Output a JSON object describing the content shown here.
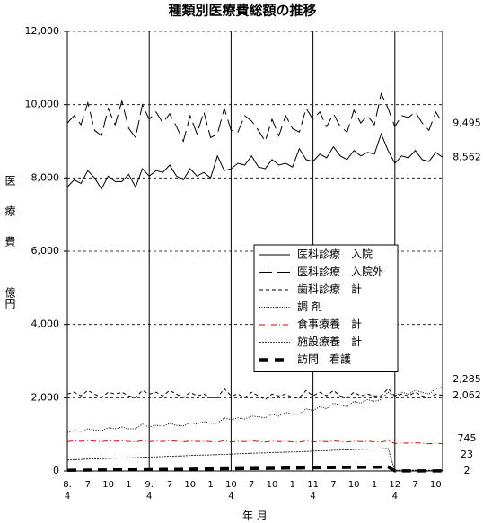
{
  "chart_data": {
    "type": "line",
    "title": "種類別医療費総額の推移",
    "y_label": "医療費",
    "y_unit": "億円",
    "x_label": "年 月",
    "categories": [
      "8.\n4",
      null,
      null,
      "7",
      null,
      null,
      "10",
      null,
      null,
      "1",
      null,
      null,
      "9.\n4",
      null,
      null,
      "7",
      null,
      null,
      "10",
      null,
      null,
      "1",
      null,
      null,
      "10\n4",
      null,
      null,
      "7",
      null,
      null,
      "10",
      null,
      null,
      "1",
      null,
      null,
      "11\n4",
      null,
      null,
      "7",
      null,
      null,
      "10",
      null,
      null,
      "1",
      null,
      null,
      "12\n4",
      null,
      null,
      "7",
      null,
      null,
      "10",
      null
    ],
    "ylim": [
      0,
      12000
    ],
    "yticks": [
      0,
      {
        "value": 2000,
        "label": "2,000"
      },
      {
        "value": 4000,
        "label": "4,000"
      },
      {
        "value": 6000,
        "label": "6,000"
      },
      {
        "value": 8000,
        "label": "8,000"
      },
      {
        "value": 10000,
        "label": "10,000"
      },
      {
        "value": 12000,
        "label": "12,000"
      }
    ],
    "grid": true,
    "series": [
      {
        "name": "医科診療　入院",
        "color": "#000000",
        "line_style": "solid",
        "values": [
          7750,
          7950,
          7850,
          8200,
          8000,
          7700,
          8050,
          7900,
          7900,
          8100,
          7750,
          8250,
          8050,
          8200,
          8150,
          8350,
          8050,
          7950,
          8250,
          8050,
          8150,
          8000,
          8600,
          8200,
          8250,
          8400,
          8350,
          8600,
          8300,
          8250,
          8500,
          8350,
          8400,
          8300,
          8800,
          8500,
          8450,
          8650,
          8550,
          8850,
          8600,
          8500,
          8750,
          8600,
          8700,
          8650,
          9200,
          8750,
          8400,
          8600,
          8550,
          8750,
          8500,
          8450,
          8700,
          8562
        ],
        "value_labels": [
          null,
          null,
          null,
          null,
          null,
          null,
          null,
          null,
          null,
          null,
          null,
          null,
          null,
          null,
          null,
          null,
          null,
          null,
          null,
          null,
          null,
          null,
          null,
          null,
          null,
          null,
          null,
          null,
          null,
          null,
          null,
          null,
          null,
          null,
          null,
          null,
          null,
          null,
          null,
          null,
          null,
          null,
          null,
          null,
          null,
          null,
          null,
          null,
          null,
          null,
          null,
          null,
          null,
          null,
          null,
          "8,562"
        ]
      },
      {
        "name": "医科診療　入院外",
        "color": "#000000",
        "line_style": "longdash",
        "values": [
          9500,
          9700,
          9450,
          10050,
          9300,
          9150,
          9900,
          9450,
          10100,
          9350,
          9100,
          10000,
          9600,
          9800,
          9500,
          9750,
          9400,
          9000,
          9700,
          9200,
          9800,
          9100,
          9200,
          9900,
          9300,
          9250,
          9700,
          9550,
          9300,
          9000,
          9600,
          9150,
          9700,
          9350,
          9250,
          9900,
          9600,
          9800,
          9400,
          9750,
          9400,
          9250,
          9850,
          9500,
          9700,
          9450,
          10300,
          9900,
          9400,
          9700,
          9650,
          9800,
          9500,
          9300,
          9800,
          9495
        ],
        "value_labels": [
          null,
          null,
          null,
          null,
          null,
          null,
          null,
          null,
          null,
          null,
          null,
          null,
          null,
          null,
          null,
          null,
          null,
          null,
          null,
          null,
          null,
          null,
          null,
          null,
          null,
          null,
          null,
          null,
          null,
          null,
          null,
          null,
          null,
          null,
          null,
          null,
          null,
          null,
          null,
          null,
          null,
          null,
          null,
          null,
          null,
          null,
          null,
          null,
          null,
          null,
          null,
          null,
          null,
          null,
          null,
          "9,495"
        ]
      },
      {
        "name": "歯科診療　計",
        "color": "#000000",
        "line_style": "dash",
        "values": [
          2100,
          2150,
          2050,
          2200,
          2100,
          2000,
          2150,
          2100,
          2150,
          2050,
          2000,
          2200,
          2100,
          2150,
          2050,
          2200,
          2100,
          2000,
          2150,
          2050,
          2100,
          2000,
          2000,
          2250,
          2050,
          2100,
          2000,
          2150,
          2050,
          1950,
          2100,
          2050,
          2100,
          2000,
          2000,
          2200,
          2050,
          2150,
          2050,
          2200,
          2050,
          2000,
          2150,
          2050,
          2100,
          2050,
          2050,
          2250,
          2050,
          2100,
          2050,
          2150,
          2050,
          2000,
          2100,
          2062
        ],
        "value_labels": [
          null,
          null,
          null,
          null,
          null,
          null,
          null,
          null,
          null,
          null,
          null,
          null,
          null,
          null,
          null,
          null,
          null,
          null,
          null,
          null,
          null,
          null,
          null,
          null,
          null,
          null,
          null,
          null,
          null,
          null,
          null,
          null,
          null,
          null,
          null,
          null,
          null,
          null,
          null,
          null,
          null,
          null,
          null,
          null,
          null,
          null,
          null,
          null,
          null,
          null,
          null,
          null,
          null,
          null,
          null,
          "2,062"
        ]
      },
      {
        "name": "調 剤",
        "color": "#000000",
        "line_style": "dot",
        "values": [
          1050,
          1100,
          1080,
          1150,
          1120,
          1100,
          1180,
          1150,
          1200,
          1150,
          1150,
          1280,
          1200,
          1250,
          1220,
          1300,
          1250,
          1230,
          1320,
          1280,
          1350,
          1300,
          1300,
          1450,
          1400,
          1450,
          1420,
          1500,
          1480,
          1450,
          1550,
          1500,
          1600,
          1550,
          1550,
          1700,
          1650,
          1750,
          1700,
          1850,
          1800,
          1750,
          1900,
          1850,
          1950,
          1900,
          1950,
          2150,
          2050,
          2150,
          2100,
          2200,
          2150,
          2100,
          2250,
          2285
        ],
        "value_labels": [
          null,
          null,
          null,
          null,
          null,
          null,
          null,
          null,
          null,
          null,
          null,
          null,
          null,
          null,
          null,
          null,
          null,
          null,
          null,
          null,
          null,
          null,
          null,
          null,
          null,
          null,
          null,
          null,
          null,
          null,
          null,
          null,
          null,
          null,
          null,
          null,
          null,
          null,
          null,
          null,
          null,
          null,
          null,
          null,
          null,
          null,
          null,
          null,
          null,
          null,
          null,
          null,
          null,
          null,
          null,
          "2,285"
        ]
      },
      {
        "name": "食事療養　計",
        "color": "#e00000",
        "line_style": "dashdot",
        "values": [
          800,
          820,
          810,
          830,
          815,
          800,
          825,
          810,
          820,
          805,
          790,
          830,
          800,
          815,
          805,
          825,
          810,
          795,
          820,
          805,
          815,
          800,
          790,
          825,
          790,
          810,
          800,
          820,
          805,
          790,
          815,
          800,
          810,
          795,
          785,
          820,
          790,
          810,
          800,
          820,
          805,
          790,
          815,
          800,
          810,
          795,
          790,
          825,
          750,
          765,
          760,
          770,
          755,
          745,
          760,
          745
        ]
      },
      {
        "name": "施設療養　計",
        "color": "#000000",
        "line_style": "finedot",
        "values": [
          300,
          310,
          315,
          325,
          330,
          335,
          345,
          350,
          355,
          360,
          365,
          375,
          380,
          390,
          395,
          405,
          410,
          415,
          425,
          430,
          435,
          440,
          445,
          455,
          460,
          470,
          475,
          485,
          490,
          495,
          505,
          510,
          515,
          520,
          525,
          535,
          540,
          550,
          555,
          565,
          570,
          575,
          585,
          590,
          595,
          600,
          605,
          615,
          20,
          21,
          21,
          22,
          22,
          22,
          23,
          23
        ]
      },
      {
        "name": "訪問　看護",
        "color": "#000000",
        "line_style": "thickdash",
        "values": [
          20,
          22,
          23,
          25,
          26,
          27,
          29,
          30,
          31,
          32,
          33,
          35,
          37,
          39,
          41,
          43,
          45,
          47,
          49,
          51,
          53,
          55,
          57,
          60,
          62,
          64,
          66,
          68,
          70,
          72,
          74,
          76,
          78,
          80,
          82,
          85,
          87,
          89,
          91,
          93,
          95,
          97,
          99,
          101,
          103,
          105,
          107,
          110,
          2,
          2,
          2,
          2,
          2,
          2,
          2,
          2
        ]
      }
    ]
  }
}
